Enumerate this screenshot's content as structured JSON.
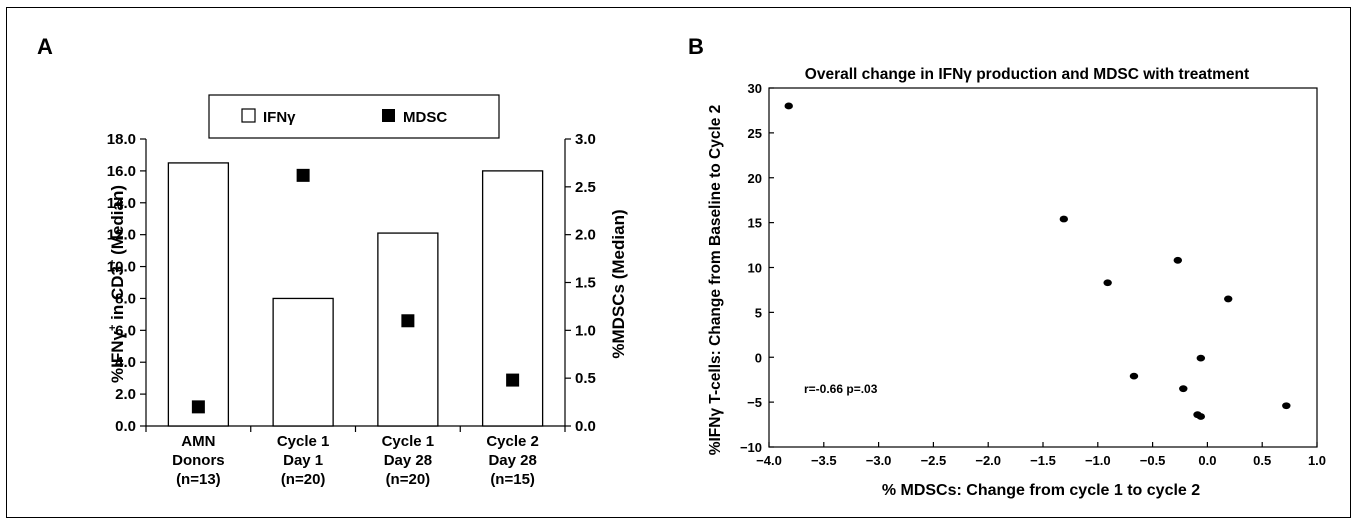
{
  "panels": {
    "a_label": "A",
    "b_label": "B"
  },
  "chart_data": [
    {
      "type": "bar",
      "panel": "A",
      "legend": [
        "IFNγ",
        "MDSC"
      ],
      "legend_placement": "top-center",
      "categories": [
        [
          "AMN",
          "Donors",
          "(n=13)"
        ],
        [
          "Cycle 1",
          "Day 1",
          "(n=20)"
        ],
        [
          "Cycle 1",
          "Day 28",
          "(n=20)"
        ],
        [
          "Cycle 2",
          "Day 28",
          "(n=15)"
        ]
      ],
      "series": [
        {
          "name": "IFNγ",
          "kind": "bar",
          "axis": "left",
          "values": [
            16.5,
            8.0,
            12.1,
            16.0
          ]
        },
        {
          "name": "MDSC",
          "kind": "marker",
          "axis": "right",
          "values": [
            0.2,
            2.62,
            1.1,
            0.48
          ]
        }
      ],
      "ylabel_left_parts": [
        "%IFNγ",
        "+",
        " in CD3",
        "+",
        " (Median)"
      ],
      "ylabel_right": "%MDSCs (Median)",
      "ylim_left": [
        0,
        18
      ],
      "ylim_right": [
        0,
        3
      ],
      "yticks_left": [
        "0.0",
        "2.0",
        "4.0",
        "6.0",
        "8.0",
        "10.0",
        "12.0",
        "14.0",
        "16.0",
        "18.0"
      ],
      "yticks_right": [
        "0.0",
        "0.5",
        "1.0",
        "1.5",
        "2.0",
        "2.5",
        "3.0"
      ],
      "grid": false
    },
    {
      "type": "scatter",
      "panel": "B",
      "title": "Overall change in IFNγ production and MDSC with treatment",
      "xlabel": "% MDSCs: Change from cycle 1 to cycle 2",
      "ylabel": "%IFNγ T-cells: Change from Baseline to Cycle 2",
      "xlim": [
        -4.0,
        1.0
      ],
      "ylim": [
        -10,
        30
      ],
      "xticks": [
        "−4.0",
        "−3.5",
        "−3.0",
        "−2.5",
        "−2.0",
        "−1.5",
        "−1.0",
        "−0.5",
        "0.0",
        "0.5",
        "1.0"
      ],
      "yticks": [
        "−10",
        "−5",
        "0",
        "5",
        "10",
        "15",
        "20",
        "25",
        "30"
      ],
      "points": [
        {
          "x": -3.82,
          "y": 28.0
        },
        {
          "x": -1.31,
          "y": 15.4
        },
        {
          "x": -0.27,
          "y": 10.8
        },
        {
          "x": -0.91,
          "y": 8.3
        },
        {
          "x": 0.19,
          "y": 6.5
        },
        {
          "x": -0.06,
          "y": -0.1
        },
        {
          "x": -0.67,
          "y": -2.1
        },
        {
          "x": -0.22,
          "y": -3.5
        },
        {
          "x": -0.09,
          "y": -6.4
        },
        {
          "x": -0.06,
          "y": -6.6
        },
        {
          "x": 0.72,
          "y": -5.4
        }
      ],
      "annotation": "r=-0.66 p=.03",
      "grid": false
    }
  ]
}
